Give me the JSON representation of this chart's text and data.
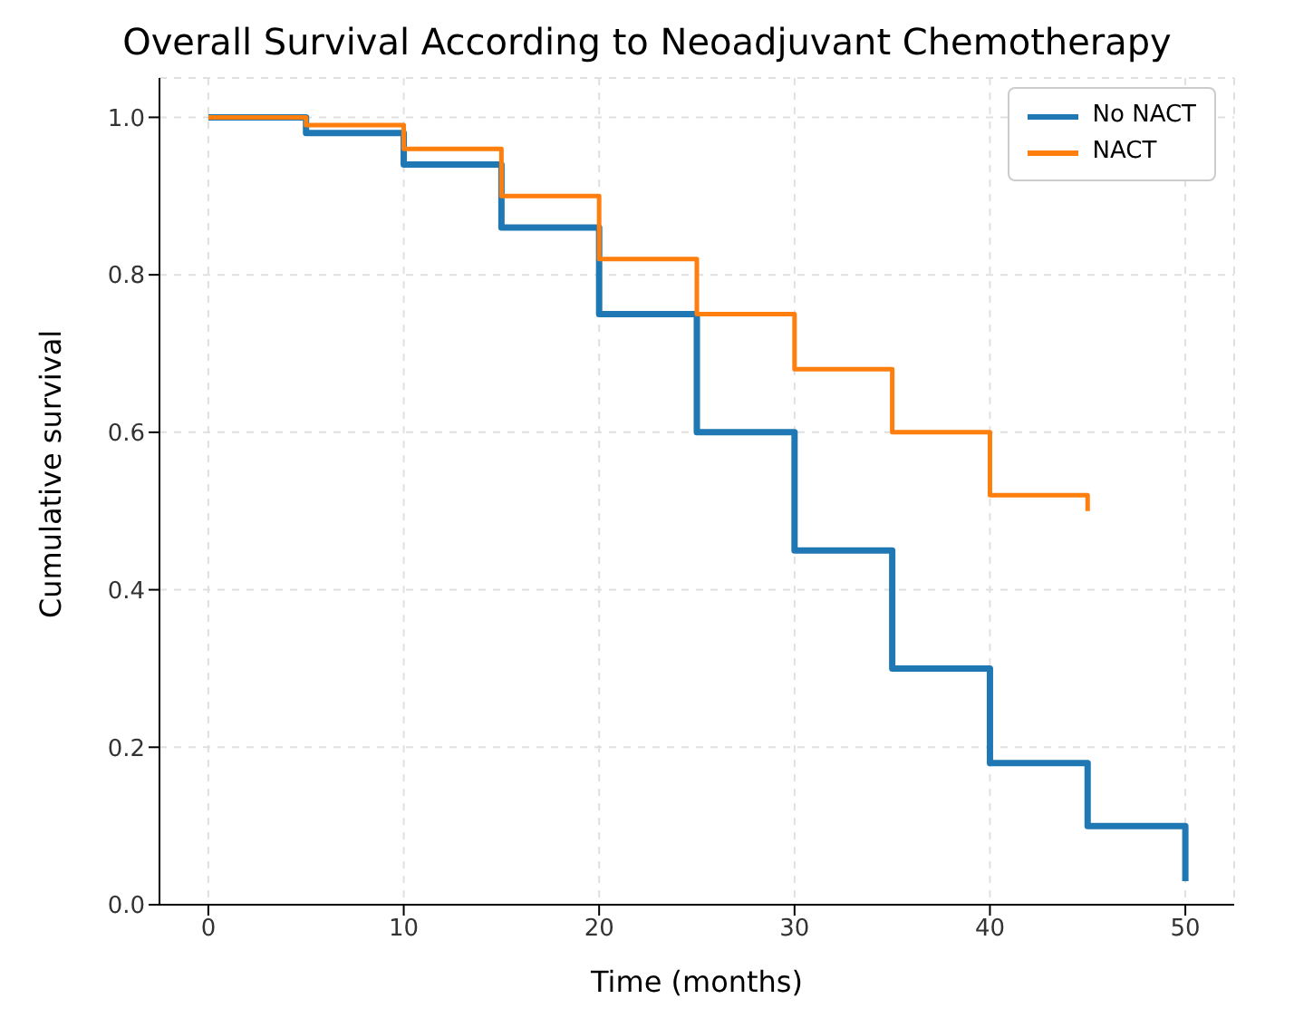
{
  "chart_data": {
    "type": "step",
    "title": "Overall Survival According to Neoadjuvant Chemotherapy",
    "xlabel": "Time (months)",
    "ylabel": "Cumulative survival",
    "x": [
      0,
      5,
      10,
      15,
      20,
      25,
      30,
      35,
      40,
      45,
      50
    ],
    "series": [
      {
        "name": "No NACT",
        "color": "#1f77b4",
        "values": [
          1.0,
          0.98,
          0.94,
          0.86,
          0.75,
          0.6,
          0.45,
          0.3,
          0.18,
          0.1,
          0.03
        ]
      },
      {
        "name": "NACT",
        "color": "#ff7f0e",
        "x": [
          0,
          5,
          10,
          15,
          20,
          25,
          30,
          35,
          40,
          45
        ],
        "values": [
          1.0,
          0.99,
          0.96,
          0.9,
          0.82,
          0.75,
          0.68,
          0.6,
          0.52,
          0.5
        ]
      }
    ],
    "xlim": [
      -2.5,
      52.5
    ],
    "xticks": [
      0,
      10,
      20,
      30,
      40,
      50
    ],
    "ylim": [
      0,
      1.05
    ],
    "yticks": [
      {
        "value": 0,
        "label": "0.0"
      },
      {
        "value": 0.2,
        "label": "0.2"
      },
      {
        "value": 0.4,
        "label": "0.4"
      },
      {
        "value": 0.6,
        "label": "0.6"
      },
      {
        "value": 0.8,
        "label": "0.8"
      },
      {
        "value": 1,
        "label": "1.0"
      }
    ],
    "grid": true,
    "legend": "top right",
    "marker": "none",
    "line_style": "solid"
  }
}
